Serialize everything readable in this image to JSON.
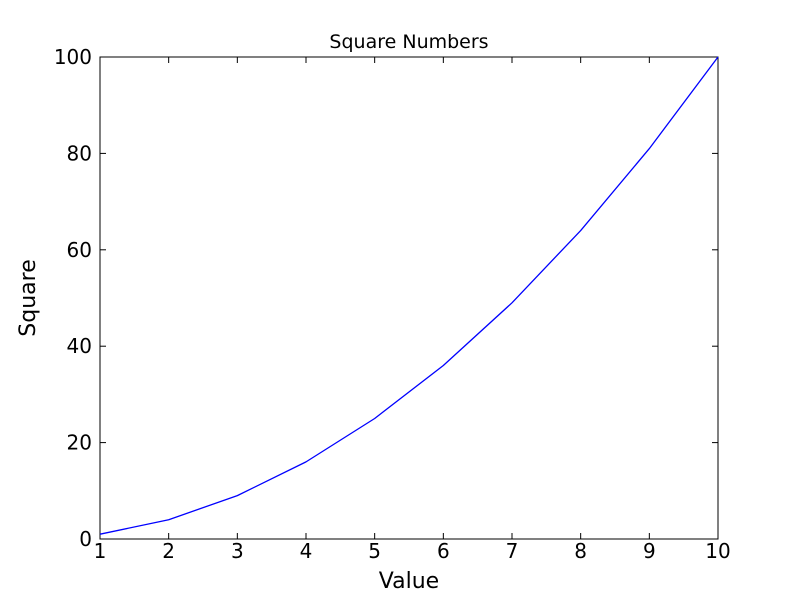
{
  "figure": {
    "background": "#ffffff",
    "spine_color": "#000000",
    "text_color": "#000000"
  },
  "chart_data": {
    "type": "line",
    "title": "Square Numbers",
    "xlabel": "Value",
    "ylabel": "Square",
    "x": [
      1,
      2,
      3,
      4,
      5,
      6,
      7,
      8,
      9,
      10
    ],
    "series": [
      {
        "name": "squares",
        "values": [
          1,
          4,
          9,
          16,
          25,
          36,
          49,
          64,
          81,
          100
        ],
        "color": "#0000ff",
        "linewidth": 1.3
      }
    ],
    "xlim": [
      1,
      10
    ],
    "ylim": [
      0,
      100
    ],
    "xticks": [
      1,
      2,
      3,
      4,
      5,
      6,
      7,
      8,
      9,
      10
    ],
    "yticks": [
      0,
      20,
      40,
      60,
      80,
      100
    ],
    "grid": false,
    "legend": null,
    "markers": false
  }
}
